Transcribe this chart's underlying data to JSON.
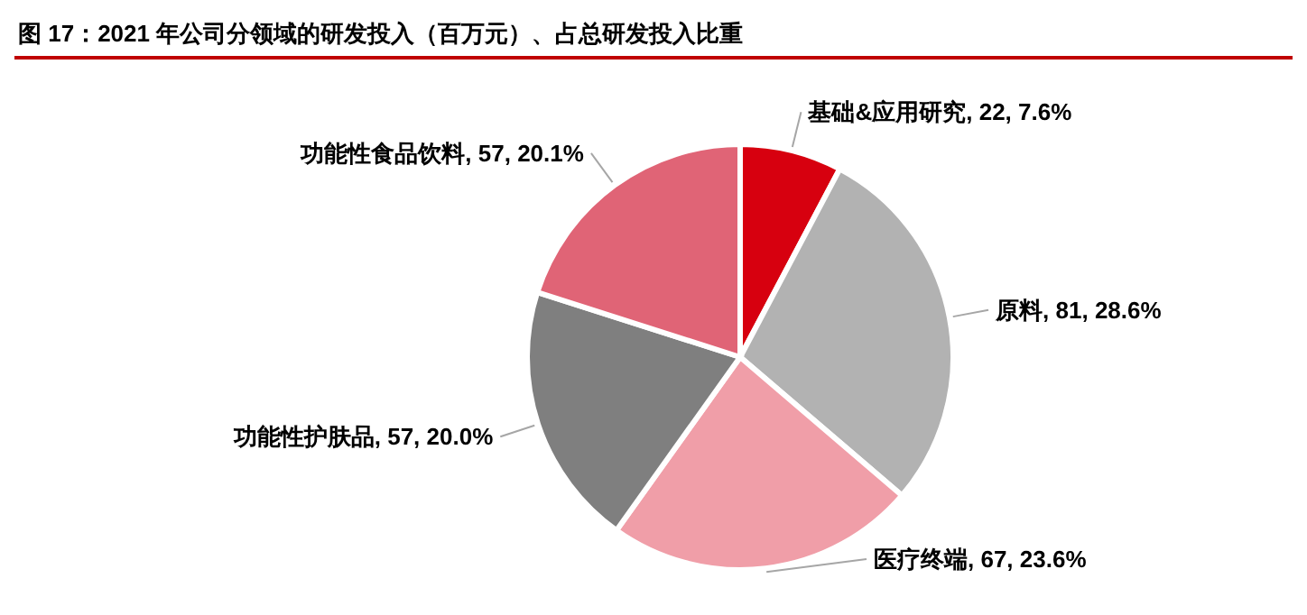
{
  "chart_data": {
    "type": "pie",
    "title": "图 17：2021 年公司分领域的研发投入（百万元）、占总研发投入比重",
    "categories": [
      "基础&应用研究",
      "原料",
      "医疗终端",
      "功能性护肤品",
      "功能性食品饮料"
    ],
    "values": [
      22,
      81,
      67,
      57,
      57
    ],
    "value_labels": [
      "22, 7.6%",
      "81, 28.6%",
      "67, 23.6%",
      "57, 20.0%",
      "57, 20.1%"
    ],
    "colors": [
      "#d7000f",
      "#b2b2b2",
      "#f09ea8",
      "#7f7f7f",
      "#e06476"
    ],
    "legend": false
  }
}
